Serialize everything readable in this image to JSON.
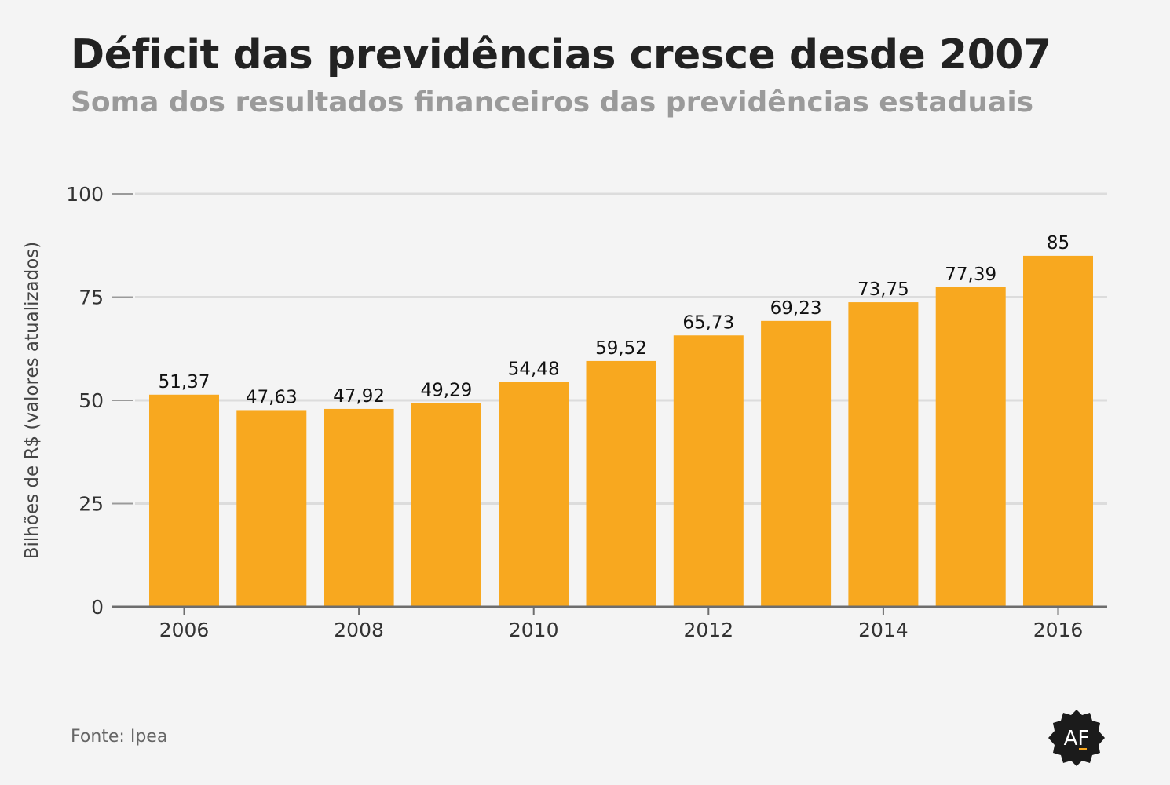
{
  "header": {
    "title": "Déficit das previdências cresce desde 2007",
    "subtitle": "Soma dos resultados financeiros das previdências estaduais"
  },
  "footer": {
    "source": "Fonte: Ipea",
    "logo_text": "AF"
  },
  "colors": {
    "bar": "#f8a81f",
    "grid": "#dcdcdc",
    "axis": "#6d6d6d",
    "background": "#f4f4f4"
  },
  "chart_data": {
    "type": "bar",
    "categories": [
      "2006",
      "2007",
      "2008",
      "2009",
      "2010",
      "2011",
      "2012",
      "2013",
      "2014",
      "2015",
      "2016"
    ],
    "values": [
      51.37,
      47.63,
      47.92,
      49.29,
      54.48,
      59.52,
      65.73,
      69.23,
      73.75,
      77.39,
      85
    ],
    "value_labels": [
      "51,37",
      "47,63",
      "47,92",
      "49,29",
      "54,48",
      "59,52",
      "65,73",
      "69,23",
      "73,75",
      "77,39",
      "85"
    ],
    "x_tick_labels": [
      "2006",
      "2008",
      "2010",
      "2012",
      "2014",
      "2016"
    ],
    "y_ticks": [
      0,
      25,
      50,
      75,
      100
    ],
    "ylim": [
      0,
      100
    ],
    "ylabel": "Bilhões de R$ (valores atualizados)",
    "xlabel": "",
    "grid": true
  }
}
